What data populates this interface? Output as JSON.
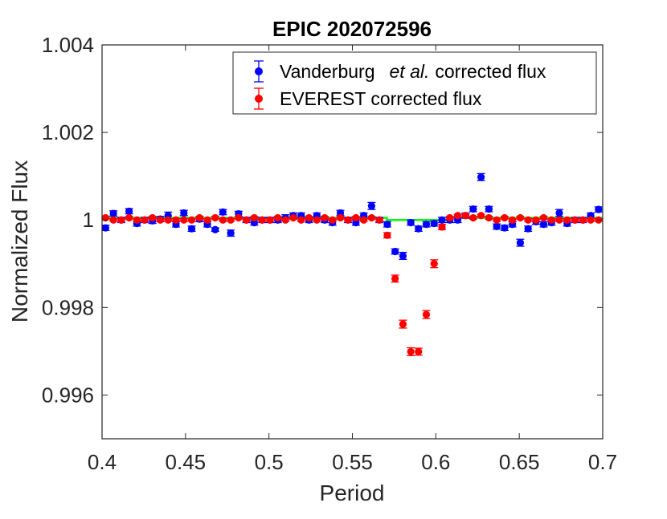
{
  "chart_data": {
    "type": "scatter",
    "title": "EPIC 202072596",
    "xlabel": "Period",
    "ylabel": "Normalized Flux",
    "xlim": [
      0.4,
      0.7
    ],
    "ylim": [
      0.995,
      1.004
    ],
    "x_ticks": [
      0.4,
      0.45,
      0.5,
      0.55,
      0.6,
      0.65,
      0.7
    ],
    "x_tick_labels": [
      "0.4",
      "0.45",
      "0.5",
      "0.55",
      "0.6",
      "0.65",
      "0.7"
    ],
    "y_ticks": [
      0.996,
      0.998,
      1.0,
      1.002,
      1.004
    ],
    "y_tick_labels": [
      "0.996",
      "0.998",
      "1",
      "1.002",
      "1.004"
    ],
    "grid": false,
    "legend_position": "top-right",
    "legend": {
      "entries": [
        {
          "name_plain": "Vanderburg",
          "name_italic": "et al.",
          "name_rest": "corrected flux",
          "color": "#0000ff"
        },
        {
          "name_plain": "EVEREST corrected flux",
          "name_italic": "",
          "name_rest": "",
          "color": "#ff0000"
        }
      ]
    },
    "model_line": {
      "color": "#00ff00",
      "x": [
        0.4,
        0.5707,
        0.5707,
        0.6087,
        0.6087,
        0.7
      ],
      "y": [
        1.00005,
        1.00005,
        1.0,
        1.0,
        1.00005,
        1.00005
      ]
    },
    "series": [
      {
        "color": "#0000ff",
        "points": [
          [
            0.4021,
            0.99982,
            6e-05
          ],
          [
            0.4068,
            1.00015,
            6e-05
          ],
          [
            0.4115,
            1.0,
            6e-05
          ],
          [
            0.4162,
            1.0002,
            6e-05
          ],
          [
            0.4209,
            0.99992,
            6e-05
          ],
          [
            0.4255,
            1.0,
            6e-05
          ],
          [
            0.4302,
            0.99998,
            6e-05
          ],
          [
            0.4349,
            1.00002,
            6e-05
          ],
          [
            0.4396,
            1.0001,
            8e-05
          ],
          [
            0.4443,
            0.9999,
            6e-05
          ],
          [
            0.449,
            1.00016,
            6e-05
          ],
          [
            0.4537,
            0.9998,
            6e-05
          ],
          [
            0.4584,
            1.00002,
            6e-05
          ],
          [
            0.4631,
            0.9999,
            6e-05
          ],
          [
            0.4678,
            0.99978,
            4e-05
          ],
          [
            0.4724,
            1.00018,
            6e-05
          ],
          [
            0.4771,
            0.9997,
            7e-05
          ],
          [
            0.4818,
            1.00014,
            6e-05
          ],
          [
            0.4865,
            1.0,
            6e-05
          ],
          [
            0.4912,
            0.99994,
            6e-05
          ],
          [
            0.4959,
            1.0,
            6e-05
          ],
          [
            0.5006,
            1.0,
            6e-05
          ],
          [
            0.5053,
            1.0,
            6e-05
          ],
          [
            0.5099,
            1.00005,
            7e-05
          ],
          [
            0.5146,
            1.0001,
            6e-05
          ],
          [
            0.5193,
            1.0001,
            6e-05
          ],
          [
            0.524,
            1.0,
            6e-05
          ],
          [
            0.5287,
            1.0001,
            6e-05
          ],
          [
            0.5334,
            1.0,
            6e-05
          ],
          [
            0.5381,
            0.99994,
            6e-05
          ],
          [
            0.5428,
            1.00016,
            6e-05
          ],
          [
            0.5474,
            1.0,
            6e-05
          ],
          [
            0.5521,
            0.99994,
            6e-05
          ],
          [
            0.5568,
            1.0001,
            6e-05
          ],
          [
            0.5615,
            1.00032,
            8e-05
          ],
          [
            0.5662,
            1.0,
            6e-05
          ],
          [
            0.5709,
            0.9999,
            6e-05
          ],
          [
            0.5756,
            0.99928,
            6e-05
          ],
          [
            0.5803,
            0.99918,
            8e-05
          ],
          [
            0.585,
            0.99994,
            6e-05
          ],
          [
            0.5896,
            0.9998,
            6e-05
          ],
          [
            0.5943,
            0.9999,
            6e-05
          ],
          [
            0.599,
            0.99992,
            6e-05
          ],
          [
            0.6037,
            1.0,
            6e-05
          ],
          [
            0.6084,
            1.0,
            6e-05
          ],
          [
            0.6131,
            1.0,
            6e-05
          ],
          [
            0.6178,
            1.0001,
            6e-05
          ],
          [
            0.6224,
            1.00025,
            6e-05
          ],
          [
            0.6271,
            1.00098,
            8e-05
          ],
          [
            0.6318,
            1.00025,
            6e-05
          ],
          [
            0.6365,
            0.99985,
            6e-05
          ],
          [
            0.6412,
            0.99982,
            6e-05
          ],
          [
            0.6459,
            0.9999,
            6e-05
          ],
          [
            0.6506,
            0.99948,
            8e-05
          ],
          [
            0.6553,
            0.9998,
            6e-05
          ],
          [
            0.66,
            0.99996,
            6e-05
          ],
          [
            0.6646,
            0.9999,
            6e-05
          ],
          [
            0.6693,
            0.99994,
            6e-05
          ],
          [
            0.674,
            1.00016,
            8e-05
          ],
          [
            0.6787,
            0.99992,
            6e-05
          ],
          [
            0.6834,
            1.0,
            6e-05
          ],
          [
            0.6881,
            1.0,
            6e-05
          ],
          [
            0.6928,
            1.0001,
            6e-05
          ],
          [
            0.6975,
            1.00024,
            6e-05
          ]
        ]
      },
      {
        "color": "#ff0000",
        "points": [
          [
            0.4021,
            1.00005,
            3e-05
          ],
          [
            0.4068,
            1.0,
            3e-05
          ],
          [
            0.4115,
            1.0,
            3e-05
          ],
          [
            0.4162,
            1.00005,
            3e-05
          ],
          [
            0.4209,
            1.0,
            3e-05
          ],
          [
            0.4255,
            1.0,
            3e-05
          ],
          [
            0.4302,
            1.00005,
            3e-05
          ],
          [
            0.4349,
            1.0,
            3e-05
          ],
          [
            0.4396,
            1.0,
            3e-05
          ],
          [
            0.4443,
            1.0,
            3e-05
          ],
          [
            0.449,
            1.0,
            3e-05
          ],
          [
            0.4537,
            1.0,
            3e-05
          ],
          [
            0.4584,
            1.00005,
            3e-05
          ],
          [
            0.4631,
            1.0,
            3e-05
          ],
          [
            0.4678,
            1.00005,
            3e-05
          ],
          [
            0.4724,
            1.0,
            3e-05
          ],
          [
            0.4771,
            1.0,
            3e-05
          ],
          [
            0.4818,
            1.00005,
            3e-05
          ],
          [
            0.4865,
            1.0,
            3e-05
          ],
          [
            0.4912,
            1.00005,
            3e-05
          ],
          [
            0.4959,
            1.0,
            3e-05
          ],
          [
            0.5006,
            1.0,
            3e-05
          ],
          [
            0.5053,
            1.00005,
            3e-05
          ],
          [
            0.5099,
            1.0,
            3e-05
          ],
          [
            0.5146,
            1.00005,
            3e-05
          ],
          [
            0.5193,
            1.0,
            3e-05
          ],
          [
            0.524,
            1.00005,
            3e-05
          ],
          [
            0.5287,
            1.0,
            3e-05
          ],
          [
            0.5334,
            1.00005,
            3e-05
          ],
          [
            0.5381,
            1.0,
            3e-05
          ],
          [
            0.5428,
            1.00005,
            3e-05
          ],
          [
            0.5474,
            1.0,
            3e-05
          ],
          [
            0.5521,
            1.00005,
            3e-05
          ],
          [
            0.5568,
            1.0,
            3e-05
          ],
          [
            0.5615,
            1.00005,
            3e-05
          ],
          [
            0.5662,
            1.0,
            3e-05
          ],
          [
            0.5709,
            0.99965,
            6e-05
          ],
          [
            0.5756,
            0.99866,
            8e-05
          ],
          [
            0.5803,
            0.99762,
            9e-05
          ],
          [
            0.585,
            0.99699,
            9e-05
          ],
          [
            0.5896,
            0.99699,
            8e-05
          ],
          [
            0.5943,
            0.99784,
            9e-05
          ],
          [
            0.599,
            0.999,
            9e-05
          ],
          [
            0.6037,
            0.99984,
            6e-05
          ],
          [
            0.6084,
            1.00005,
            3e-05
          ],
          [
            0.6131,
            1.0001,
            3e-05
          ],
          [
            0.6178,
            1.0001,
            3e-05
          ],
          [
            0.6224,
            1.00005,
            3e-05
          ],
          [
            0.6271,
            1.0001,
            3e-05
          ],
          [
            0.6318,
            1.00005,
            3e-05
          ],
          [
            0.6365,
            1.0,
            3e-05
          ],
          [
            0.6412,
            1.00005,
            3e-05
          ],
          [
            0.6459,
            1.0,
            3e-05
          ],
          [
            0.6506,
            1.00005,
            3e-05
          ],
          [
            0.6553,
            1.0,
            3e-05
          ],
          [
            0.66,
            1.0,
            3e-05
          ],
          [
            0.6646,
            1.00005,
            3e-05
          ],
          [
            0.6693,
            1.0,
            3e-05
          ],
          [
            0.674,
            1.0,
            3e-05
          ],
          [
            0.6787,
            1.0,
            3e-05
          ],
          [
            0.6834,
            1.0,
            3e-05
          ],
          [
            0.6881,
            1.0,
            3e-05
          ],
          [
            0.6928,
            1.0,
            3e-05
          ],
          [
            0.6975,
            1.0,
            3e-05
          ]
        ]
      }
    ]
  }
}
